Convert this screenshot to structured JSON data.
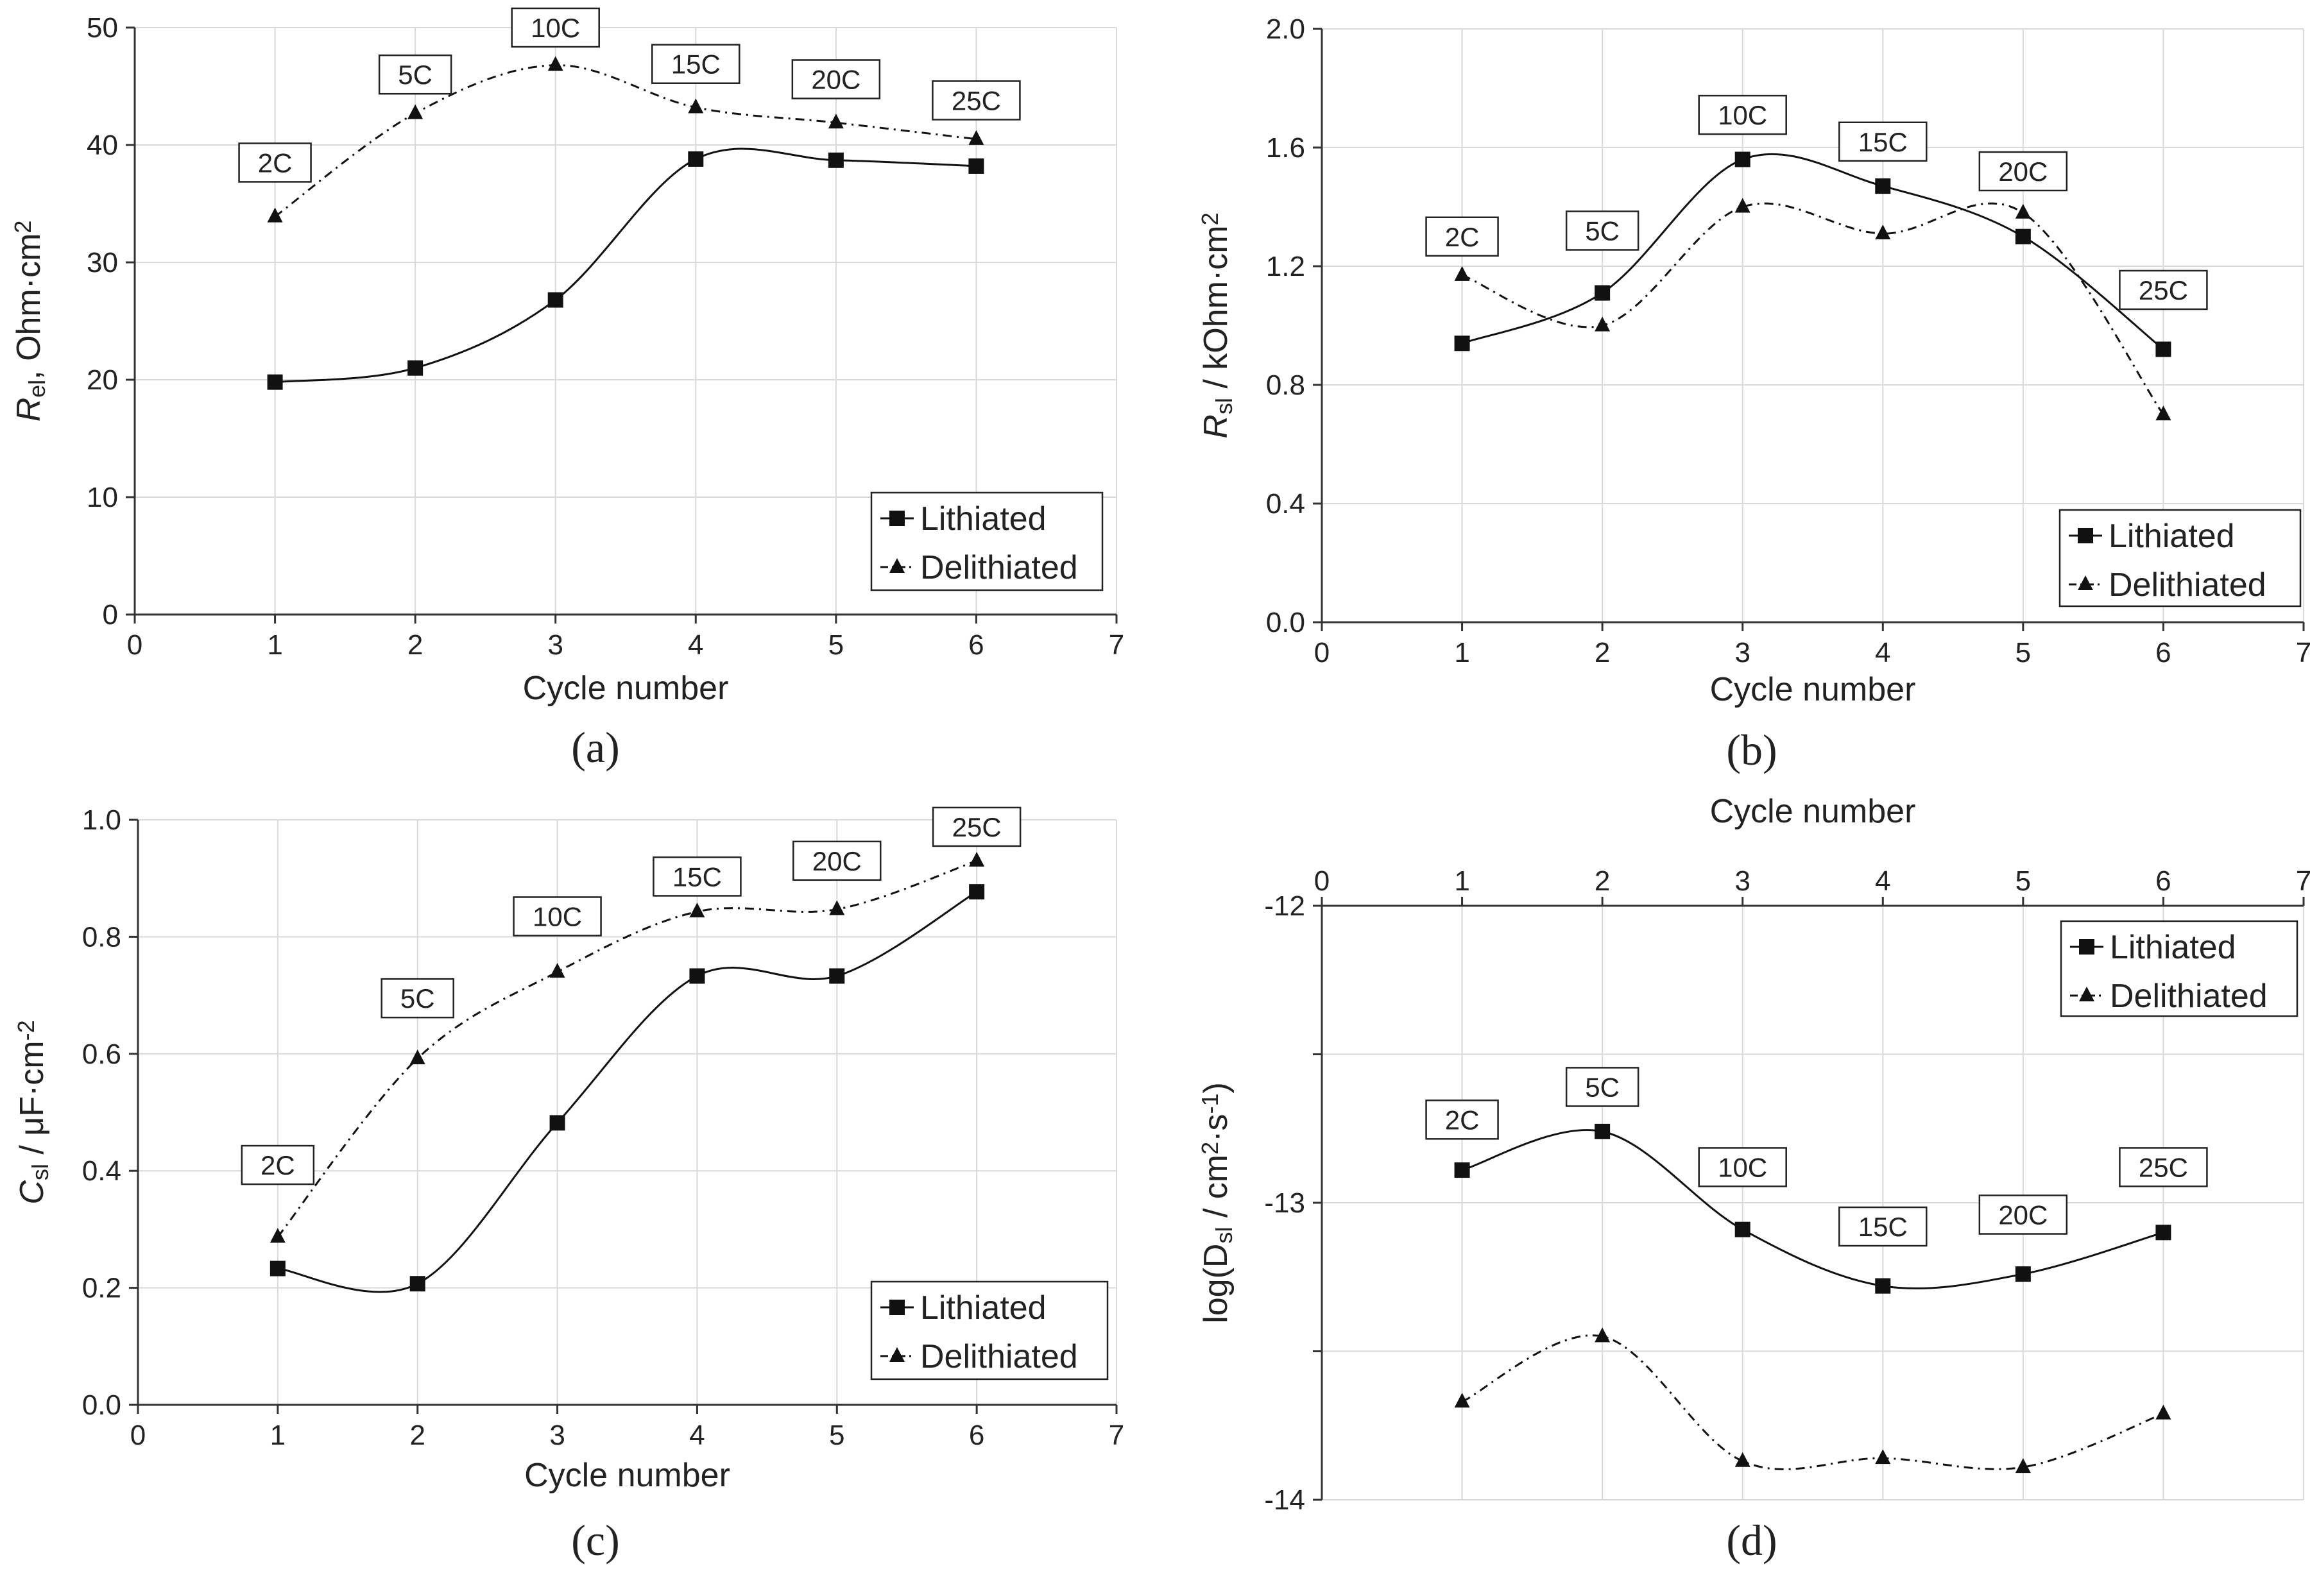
{
  "chart_data": [
    {
      "id": "a",
      "type": "line",
      "panel_label": "(a)",
      "xlabel": "Cycle number",
      "ylabel": {
        "symbol": "R",
        "subscript": "el",
        "rest": ", Ohm·cm",
        "sup": "2"
      },
      "xlim": [
        0,
        7
      ],
      "ylim": [
        0,
        50
      ],
      "xticks": [
        0,
        1,
        2,
        3,
        4,
        5,
        6,
        7
      ],
      "yticks": [
        0,
        10,
        20,
        30,
        40,
        50
      ],
      "yticklabels": [
        "0",
        "10",
        "20",
        "30",
        "40",
        "50"
      ],
      "x_axis_position": "bottom",
      "legend_position": "bottom-right",
      "series": [
        {
          "name": "Lithiated",
          "marker": "square",
          "line": "solid",
          "x": [
            1,
            2,
            3,
            4,
            5,
            6
          ],
          "values": [
            19.8,
            21.0,
            26.8,
            38.8,
            38.7,
            38.2
          ]
        },
        {
          "name": "Delithiated",
          "marker": "triangle",
          "line": "dash-dot",
          "x": [
            1,
            2,
            3,
            4,
            5,
            6
          ],
          "values": [
            33.9,
            42.7,
            46.8,
            43.2,
            41.9,
            40.5
          ]
        }
      ],
      "rate_labels": [
        {
          "text": "2C",
          "x": 1,
          "y": 38.5
        },
        {
          "text": "5C",
          "x": 2,
          "y": 46.0
        },
        {
          "text": "10C",
          "x": 3,
          "y": 50.0
        },
        {
          "text": "15C",
          "x": 4,
          "y": 46.9
        },
        {
          "text": "20C",
          "x": 5,
          "y": 45.6
        },
        {
          "text": "25C",
          "x": 6,
          "y": 43.8
        }
      ]
    },
    {
      "id": "b",
      "type": "line",
      "panel_label": "(b)",
      "xlabel": "Cycle number",
      "ylabel": {
        "symbol": "R",
        "subscript": "sl",
        "rest": " / kOhm·cm",
        "sup": "2"
      },
      "xlim": [
        0,
        7
      ],
      "ylim": [
        0,
        2
      ],
      "xticks": [
        0,
        1,
        2,
        3,
        4,
        5,
        6,
        7
      ],
      "yticks": [
        0,
        0.4,
        0.8,
        1.2,
        1.6,
        2.0
      ],
      "yticklabels": [
        "0.0",
        "0.4",
        "0.8",
        "1.2",
        "1.6",
        "2.0"
      ],
      "x_axis_position": "bottom",
      "legend_position": "bottom-right",
      "series": [
        {
          "name": "Lithiated",
          "marker": "square",
          "line": "solid",
          "x": [
            1,
            2,
            3,
            4,
            5,
            6
          ],
          "values": [
            0.94,
            1.11,
            1.56,
            1.47,
            1.3,
            0.92
          ]
        },
        {
          "name": "Delithiated",
          "marker": "triangle",
          "line": "dash-dot",
          "x": [
            1,
            2,
            3,
            4,
            5,
            6
          ],
          "values": [
            1.17,
            1.0,
            1.4,
            1.31,
            1.38,
            0.7
          ]
        }
      ],
      "rate_labels": [
        {
          "text": "2C",
          "x": 1,
          "y": 1.3
        },
        {
          "text": "5C",
          "x": 2,
          "y": 1.32
        },
        {
          "text": "10C",
          "x": 3,
          "y": 1.71
        },
        {
          "text": "15C",
          "x": 4,
          "y": 1.62
        },
        {
          "text": "20C",
          "x": 5,
          "y": 1.52
        },
        {
          "text": "25C",
          "x": 6,
          "y": 1.12
        }
      ]
    },
    {
      "id": "c",
      "type": "line",
      "panel_label": "(c)",
      "xlabel": "Cycle number",
      "ylabel": {
        "symbol": "C",
        "subscript": "sl",
        "rest": " / μF·cm",
        "sup": "-2"
      },
      "xlim": [
        0,
        7
      ],
      "ylim": [
        0,
        1
      ],
      "xticks": [
        0,
        1,
        2,
        3,
        4,
        5,
        6,
        7
      ],
      "yticks": [
        0,
        0.2,
        0.4,
        0.6,
        0.8,
        1.0
      ],
      "yticklabels": [
        "0.0",
        "0.2",
        "0.4",
        "0.6",
        "0.8",
        "1.0"
      ],
      "x_axis_position": "bottom",
      "legend_position": "bottom-right",
      "series": [
        {
          "name": "Lithiated",
          "marker": "square",
          "line": "solid",
          "x": [
            1,
            2,
            3,
            4,
            5,
            6
          ],
          "values": [
            0.233,
            0.207,
            0.482,
            0.733,
            0.733,
            0.877
          ]
        },
        {
          "name": "Delithiated",
          "marker": "triangle",
          "line": "dash-dot",
          "x": [
            1,
            2,
            3,
            4,
            5,
            6
          ],
          "values": [
            0.287,
            0.592,
            0.74,
            0.843,
            0.847,
            0.93
          ]
        }
      ],
      "rate_labels": [
        {
          "text": "2C",
          "x": 1,
          "y": 0.41
        },
        {
          "text": "5C",
          "x": 2,
          "y": 0.695
        },
        {
          "text": "10C",
          "x": 3,
          "y": 0.835
        },
        {
          "text": "15C",
          "x": 4,
          "y": 0.903
        },
        {
          "text": "20C",
          "x": 5,
          "y": 0.93
        },
        {
          "text": "25C",
          "x": 6,
          "y": 0.988
        }
      ]
    },
    {
      "id": "d",
      "type": "line",
      "panel_label": "(d)",
      "xlabel": "Cycle number",
      "ylabel": {
        "symbol": "log(D",
        "subscript": "sl",
        "rest": " / cm",
        "sup": "2",
        "rest2": "·s",
        "sup2": "-1",
        "tail": ")"
      },
      "xlim": [
        0,
        7
      ],
      "ylim": [
        -14,
        -12
      ],
      "xticks": [
        0,
        1,
        2,
        3,
        4,
        5,
        6,
        7
      ],
      "yticks": [
        -14,
        -13.5,
        -13,
        -12.5,
        -12
      ],
      "yticklabels": [
        "-14",
        "",
        "-13",
        "",
        "-12"
      ],
      "x_axis_position": "top",
      "legend_position": "top-right",
      "series": [
        {
          "name": "Lithiated",
          "marker": "square",
          "line": "solid",
          "x": [
            1,
            2,
            3,
            4,
            5,
            6
          ],
          "values": [
            -12.89,
            -12.76,
            -13.09,
            -13.28,
            -13.24,
            -13.1
          ]
        },
        {
          "name": "Delithiated",
          "marker": "triangle",
          "line": "dash-dot",
          "x": [
            1,
            2,
            3,
            4,
            5,
            6
          ],
          "values": [
            -13.67,
            -13.45,
            -13.87,
            -13.86,
            -13.89,
            -13.71
          ]
        }
      ],
      "rate_labels": [
        {
          "text": "2C",
          "x": 1,
          "y": -12.72
        },
        {
          "text": "5C",
          "x": 2,
          "y": -12.61
        },
        {
          "text": "10C",
          "x": 3,
          "y": -12.88
        },
        {
          "text": "15C",
          "x": 4,
          "y": -13.08
        },
        {
          "text": "20C",
          "x": 5,
          "y": -13.04
        },
        {
          "text": "25C",
          "x": 6,
          "y": -12.88
        }
      ]
    }
  ]
}
